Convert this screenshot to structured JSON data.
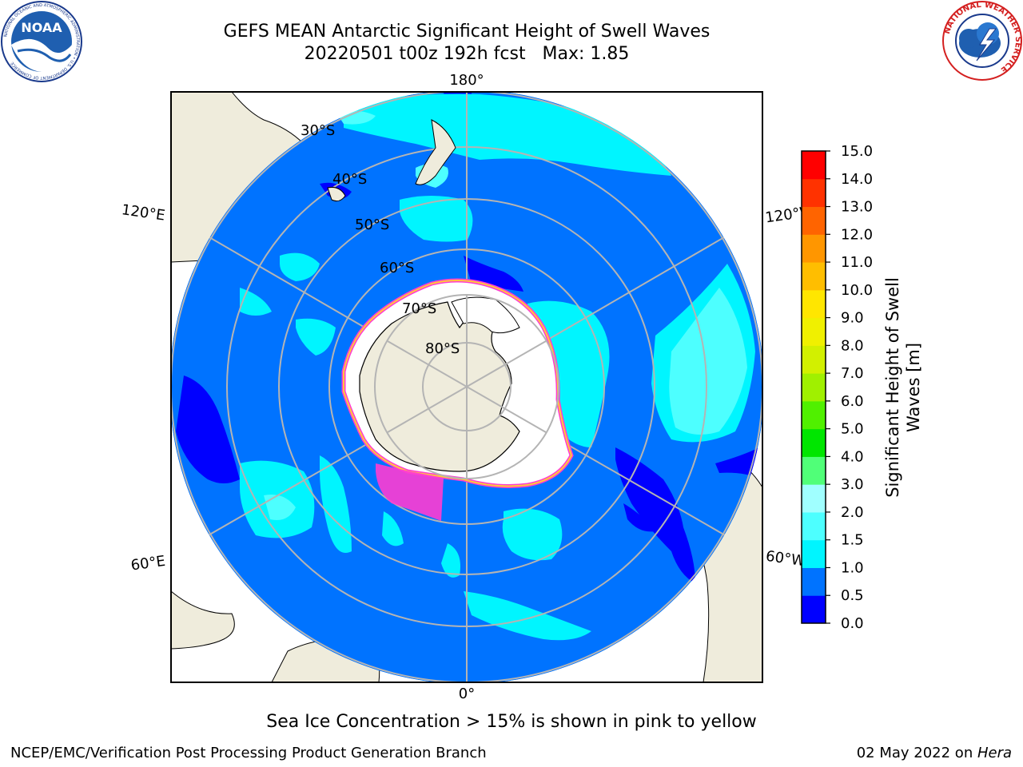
{
  "header": {
    "title_line1": "GEFS MEAN Antarctic Significant Height of Swell Waves",
    "title_line2": "20220501 t00z 192h fcst   Max: 1.85"
  },
  "logos": {
    "left": "noaa-logo",
    "left_text": "NOAA",
    "left_ring_text": "NATIONAL OCEANIC AND ATMOSPHERIC ADMINISTRATION • U.S. DEPARTMENT OF COMMERCE",
    "right": "national-weather-service-logo",
    "right_ring_text": "NATIONAL WEATHER SERVICE"
  },
  "map": {
    "longitude_labels": {
      "top": "180°",
      "bottom": "0°",
      "upper_left": "120°E",
      "upper_right": "120°W",
      "lower_left": "60°E",
      "lower_right": "60°W"
    },
    "latitude_labels": [
      "30°S",
      "40°S",
      "50°S",
      "60°S",
      "70°S",
      "80°S"
    ],
    "colors": {
      "land": "#efecdc",
      "ice": "#ffffff",
      "swell_0_0.5": "#0000ff",
      "swell_0.5_1.0": "#0073ff",
      "swell_1.0_1.5": "#00f5ff",
      "swell_1.5_2.0": "#4dffff",
      "ice_edge_pink": "#ff3cd2",
      "ice_edge_yellow": "#ffc83c",
      "grid": "#b4b4b4"
    }
  },
  "colorbar": {
    "label_line1": "Significant Height of Swell",
    "label_line2": "Waves [m]",
    "ticks": [
      "0.0",
      "0.5",
      "1.0",
      "1.5",
      "2.0",
      "3.0",
      "4.0",
      "5.0",
      "6.0",
      "7.0",
      "8.0",
      "9.0",
      "10.0",
      "11.0",
      "12.0",
      "13.0",
      "14.0",
      "15.0"
    ],
    "colors": [
      "#0000ff",
      "#0073ff",
      "#00f5ff",
      "#4dffff",
      "#a0ffff",
      "#50ff78",
      "#00e600",
      "#50f000",
      "#a0f000",
      "#d2f000",
      "#f0f000",
      "#ffe600",
      "#ffbe00",
      "#ff9600",
      "#ff6400",
      "#ff3200",
      "#ff0000"
    ]
  },
  "footer": {
    "note": "Sea Ice Concentration > 15% is shown in pink to yellow",
    "left": "NCEP/EMC/Verification Post Processing Product Generation Branch",
    "right_prefix": "02 May 2022 on ",
    "right_host": "Hera"
  }
}
